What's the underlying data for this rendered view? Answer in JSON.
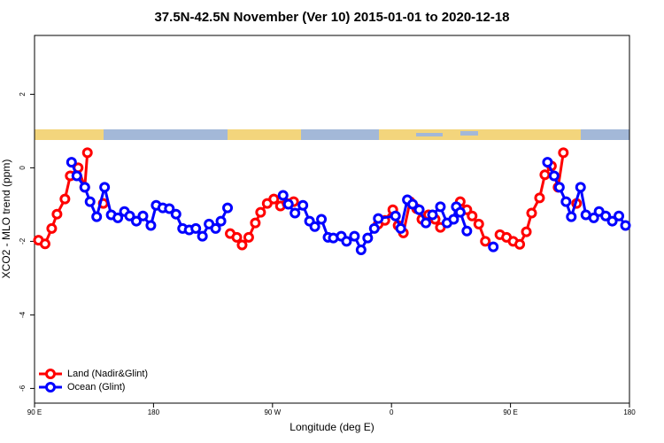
{
  "chart_data": {
    "type": "line",
    "title": "37.5N-42.5N November (Ver 10)   2015-01-01 to 2020-12-18",
    "x_label": "Longitude (deg E)",
    "y_label": "XCO2 - MLO trend (ppm)",
    "xlim": [
      90,
      540
    ],
    "ylim": [
      -6.4,
      3.6
    ],
    "xticks": [
      {
        "value": 90,
        "label": "90 E"
      },
      {
        "value": 180,
        "label": "180"
      },
      {
        "value": 270,
        "label": "90 W"
      },
      {
        "value": 360,
        "label": "0"
      },
      {
        "value": 450,
        "label": "90 E"
      },
      {
        "value": 540,
        "label": "180"
      }
    ],
    "yticks": [
      -6,
      -4,
      -2,
      0,
      2
    ],
    "legend": "lower left",
    "series": [
      {
        "name": "Land (Nadir&Glint)",
        "color": "#ff0000",
        "x": [
          93,
          98,
          103,
          107,
          113,
          117,
          123,
          128,
          130,
          null,
          142,
          null,
          238,
          243,
          247,
          252,
          257,
          261,
          266,
          271,
          276,
          281,
          286,
          null,
          350,
          355,
          361,
          365,
          369,
          374,
          379,
          383,
          388,
          393,
          397,
          null,
          412,
          417,
          421,
          426,
          431,
          null,
          442,
          447,
          452,
          457,
          462,
          466,
          472,
          476,
          481,
          486,
          490,
          null,
          500
        ],
        "values": [
          -1.97,
          -2.07,
          -1.65,
          -1.26,
          -0.85,
          -0.22,
          0,
          -0.53,
          0.41,
          null,
          -0.97,
          null,
          -1.79,
          -1.89,
          -2.1,
          -1.89,
          -1.5,
          -1.21,
          -0.97,
          -0.85,
          -1.04,
          -0.97,
          -0.92,
          null,
          -1.53,
          -1.43,
          -1.14,
          -1.57,
          -1.77,
          -0.92,
          -1.11,
          -1.4,
          -1.28,
          -1.4,
          -1.62,
          null,
          -0.92,
          -1.14,
          -1.31,
          -1.53,
          -2.0,
          null,
          -1.82,
          -1.89,
          -2.0,
          -2.08,
          -1.74,
          -1.23,
          -0.82,
          -0.19,
          0.05,
          -0.53,
          0.41,
          null,
          -0.97
        ]
      },
      {
        "name": "Ocean (Glint)",
        "color": "#0000ff",
        "x": [
          118,
          122,
          128,
          132,
          137,
          143,
          148,
          153,
          158,
          162,
          167,
          172,
          178,
          182,
          187,
          192,
          197,
          202,
          207,
          212,
          217,
          222,
          227,
          231,
          236,
          null,
          278,
          282,
          287,
          293,
          298,
          302,
          307,
          312,
          316,
          322,
          326,
          332,
          337,
          342,
          347,
          350,
          363,
          367,
          372,
          376,
          381,
          386,
          391,
          397,
          402,
          407,
          409,
          412,
          417,
          null,
          437,
          null,
          478,
          483,
          487,
          492,
          496,
          503,
          507,
          513,
          517,
          522,
          527,
          532,
          537
        ],
        "values": [
          0.15,
          -0.22,
          -0.53,
          -0.92,
          -1.33,
          -0.53,
          -1.28,
          -1.36,
          -1.19,
          -1.31,
          -1.45,
          -1.31,
          -1.57,
          -1.02,
          -1.09,
          -1.11,
          -1.26,
          -1.65,
          -1.69,
          -1.65,
          -1.86,
          -1.53,
          -1.65,
          -1.45,
          -1.09,
          null,
          -0.75,
          -0.99,
          -1.23,
          -1.02,
          -1.45,
          -1.6,
          -1.4,
          -1.89,
          -1.91,
          -1.86,
          -2.0,
          -1.86,
          -2.23,
          -1.91,
          -1.65,
          -1.38,
          -1.31,
          -1.65,
          -0.87,
          -0.99,
          -1.14,
          -1.5,
          -1.28,
          -1.06,
          -1.5,
          -1.4,
          -1.06,
          -1.21,
          -1.72,
          null,
          -2.15,
          null,
          0.15,
          -0.22,
          -0.53,
          -0.92,
          -1.33,
          -0.53,
          -1.28,
          -1.36,
          -1.19,
          -1.31,
          -1.45,
          -1.31,
          -1.57
        ]
      }
    ]
  }
}
